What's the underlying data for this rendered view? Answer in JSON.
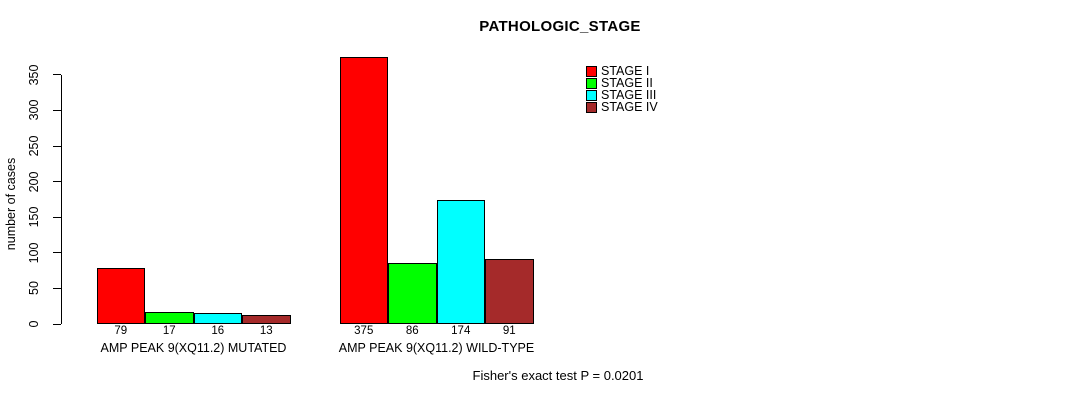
{
  "chart_data": {
    "type": "bar",
    "title": "PATHOLOGIC_STAGE",
    "ylabel": "number of cases",
    "xlabel": "",
    "ylim": [
      0,
      350
    ],
    "yticks": [
      0,
      50,
      100,
      150,
      200,
      250,
      300,
      350
    ],
    "grid": false,
    "legend_position": "top-right",
    "categories": [
      "AMP PEAK 9(XQ11.2) MUTATED",
      "AMP PEAK 9(XQ11.2) WILD-TYPE"
    ],
    "series": [
      {
        "name": "STAGE I",
        "color": "#FF0000",
        "values": [
          79,
          375
        ]
      },
      {
        "name": "STAGE II",
        "color": "#00FF00",
        "values": [
          17,
          86
        ]
      },
      {
        "name": "STAGE III",
        "color": "#00FFFF",
        "values": [
          16,
          174
        ]
      },
      {
        "name": "STAGE IV",
        "color": "#A52A2A",
        "values": [
          13,
          91
        ]
      }
    ],
    "bar_value_labels": true,
    "annotation": "Fisher's exact test P = 0.0201",
    "colors": {
      "bar_border": "#000000",
      "axis": "#000000",
      "text": "#000000",
      "background": "#FFFFFF"
    }
  }
}
